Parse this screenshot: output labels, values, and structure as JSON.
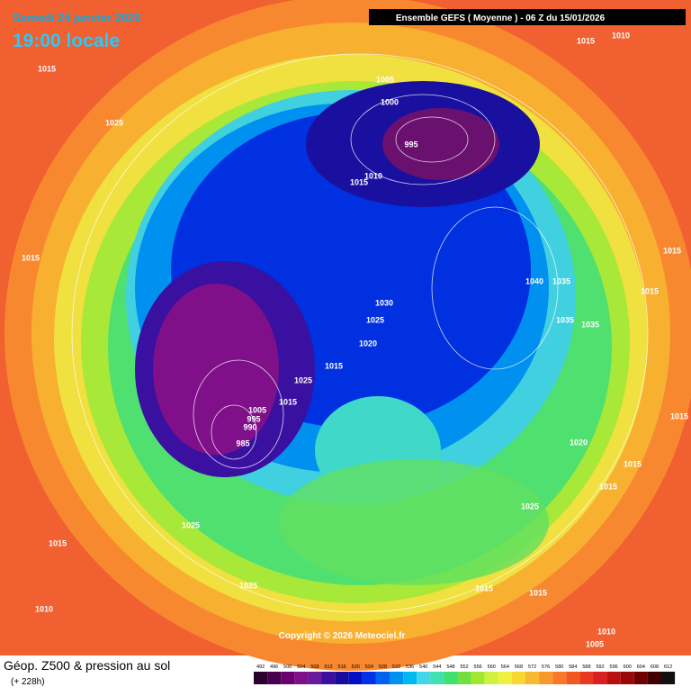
{
  "header": {
    "date": "Samedi 24 janvier 2026",
    "time": "19:00 locale",
    "run": "Ensemble GEFS  ( Moyenne )  -  06 Z du 15/01/2026"
  },
  "map": {
    "isobar_labels": [
      1015,
      1025,
      1015,
      1015,
      1010,
      1005,
      1000,
      995,
      1010,
      1015,
      1030,
      1025,
      1020,
      1015,
      1025,
      1015,
      1005,
      995,
      990,
      985,
      1040,
      1035,
      1035,
      1035,
      1015,
      1015,
      1015,
      1020,
      1015,
      1015,
      1025,
      1025,
      1015,
      1025,
      1010,
      1015,
      1015,
      1010,
      1005
    ],
    "copyright": "Copyright © 2026 Meteociel.fr"
  },
  "footer": {
    "title": "Géop. Z500 & pression au sol",
    "lead": "(+ 228h)"
  },
  "legend": {
    "values": [
      492,
      496,
      500,
      504,
      508,
      512,
      516,
      520,
      524,
      528,
      532,
      536,
      540,
      544,
      548,
      552,
      556,
      560,
      564,
      568,
      572,
      576,
      580,
      584,
      588,
      592,
      596,
      600,
      604,
      608,
      612
    ],
    "colors": [
      "#2a0030",
      "#4a0050",
      "#6a006e",
      "#80108a",
      "#6a1a9a",
      "#3a10a0",
      "#1a0c9a",
      "#0010c8",
      "#0030e8",
      "#0060f0",
      "#0090f0",
      "#00b8f0",
      "#40d8e8",
      "#40e0b0",
      "#40e070",
      "#70e040",
      "#a0e830",
      "#d0f040",
      "#f0f040",
      "#f8d830",
      "#f8b830",
      "#f89828",
      "#f87828",
      "#f05820",
      "#e83820",
      "#d82020",
      "#b81010",
      "#980808",
      "#700000",
      "#400000",
      "#101010"
    ]
  }
}
